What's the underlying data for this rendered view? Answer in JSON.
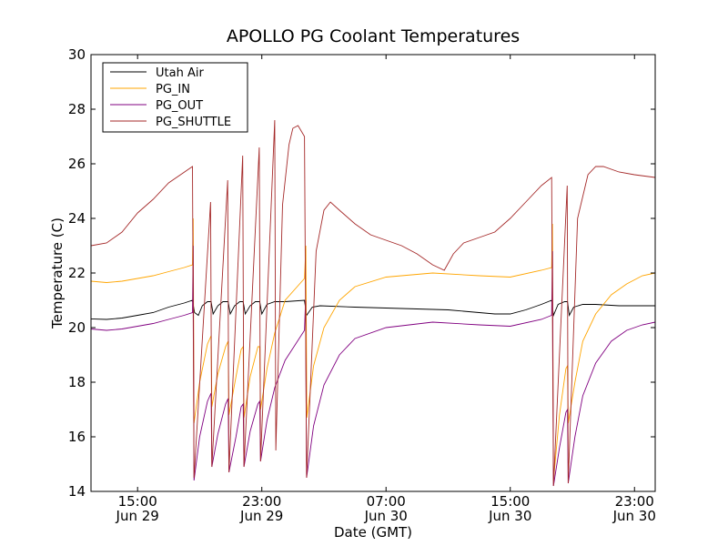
{
  "chart_data": {
    "type": "line",
    "title": "APOLLO PG Coolant Temperatures",
    "xlabel": "Date (GMT)",
    "ylabel": "Temperature (C)",
    "ylim": [
      14,
      30
    ],
    "xlim": [
      "2013-06-29 12:00",
      "2013-07-01 00:20"
    ],
    "yticks": [
      14,
      16,
      18,
      20,
      22,
      24,
      26,
      28,
      30
    ],
    "xticks": [
      {
        "t": "2013-06-29 15:00",
        "time": "15:00",
        "date": "Jun 29"
      },
      {
        "t": "2013-06-29 23:00",
        "time": "23:00",
        "date": "Jun 29"
      },
      {
        "t": "2013-06-30 07:00",
        "time": "07:00",
        "date": "Jun 30"
      },
      {
        "t": "2013-06-30 15:00",
        "time": "15:00",
        "date": "Jun 30"
      },
      {
        "t": "2013-06-30 23:00",
        "time": "23:00",
        "date": "Jun 30"
      }
    ],
    "grid": false,
    "legend_position": "top-left",
    "series": [
      {
        "name": "Utah Air",
        "color": "#000000",
        "points": [
          [
            "2013-06-29 12:00",
            20.32
          ],
          [
            "2013-06-29 13:00",
            20.3
          ],
          [
            "2013-06-29 14:00",
            20.35
          ],
          [
            "2013-06-29 15:00",
            20.45
          ],
          [
            "2013-06-29 16:00",
            20.55
          ],
          [
            "2013-06-29 17:00",
            20.75
          ],
          [
            "2013-06-29 18:00",
            20.9
          ],
          [
            "2013-06-29 18:32",
            21.0
          ],
          [
            "2013-06-29 18:40",
            20.55
          ],
          [
            "2013-06-29 18:55",
            20.45
          ],
          [
            "2013-06-29 19:10",
            20.8
          ],
          [
            "2013-06-29 19:30",
            20.95
          ],
          [
            "2013-06-29 19:44",
            20.95
          ],
          [
            "2013-06-29 19:52",
            20.5
          ],
          [
            "2013-06-29 20:10",
            20.8
          ],
          [
            "2013-06-29 20:30",
            20.95
          ],
          [
            "2013-06-29 20:50",
            20.95
          ],
          [
            "2013-06-29 20:58",
            20.5
          ],
          [
            "2013-06-29 21:15",
            20.8
          ],
          [
            "2013-06-29 21:35",
            20.95
          ],
          [
            "2013-06-29 21:48",
            20.95
          ],
          [
            "2013-06-29 21:56",
            20.5
          ],
          [
            "2013-06-29 22:15",
            20.8
          ],
          [
            "2013-06-29 22:35",
            20.95
          ],
          [
            "2013-06-29 22:52",
            20.95
          ],
          [
            "2013-06-29 23:00",
            20.5
          ],
          [
            "2013-06-29 23:20",
            20.85
          ],
          [
            "2013-06-29 23:50",
            20.95
          ],
          [
            "2013-06-30 00:30",
            20.95
          ],
          [
            "2013-06-30 01:45",
            21.0
          ],
          [
            "2013-06-30 01:53",
            20.45
          ],
          [
            "2013-06-30 02:15",
            20.75
          ],
          [
            "2013-06-30 02:45",
            20.8
          ],
          [
            "2013-06-30 05:00",
            20.75
          ],
          [
            "2013-06-30 08:00",
            20.7
          ],
          [
            "2013-06-30 11:00",
            20.65
          ],
          [
            "2013-06-30 14:00",
            20.5
          ],
          [
            "2013-06-30 15:00",
            20.5
          ],
          [
            "2013-06-30 16:00",
            20.65
          ],
          [
            "2013-06-30 17:00",
            20.85
          ],
          [
            "2013-06-30 17:40",
            21.0
          ],
          [
            "2013-06-30 17:47",
            20.45
          ],
          [
            "2013-06-30 18:05",
            20.85
          ],
          [
            "2013-06-30 18:30",
            20.95
          ],
          [
            "2013-06-30 18:41",
            20.95
          ],
          [
            "2013-06-30 18:48",
            20.45
          ],
          [
            "2013-06-30 19:05",
            20.75
          ],
          [
            "2013-06-30 19:40",
            20.85
          ],
          [
            "2013-06-30 20:30",
            20.85
          ],
          [
            "2013-06-30 22:00",
            20.8
          ],
          [
            "2013-06-30 23:00",
            20.8
          ],
          [
            "2013-07-01 00:20",
            20.8
          ]
        ]
      },
      {
        "name": "PG_IN",
        "color": "#ffa500",
        "points": [
          [
            "2013-06-29 12:00",
            21.7
          ],
          [
            "2013-06-29 13:00",
            21.65
          ],
          [
            "2013-06-29 14:00",
            21.7
          ],
          [
            "2013-06-29 15:00",
            21.8
          ],
          [
            "2013-06-29 16:00",
            21.9
          ],
          [
            "2013-06-29 17:00",
            22.05
          ],
          [
            "2013-06-29 18:00",
            22.2
          ],
          [
            "2013-06-29 18:32",
            22.3
          ],
          [
            "2013-06-29 18:35",
            24.0
          ],
          [
            "2013-06-29 18:38",
            16.5
          ],
          [
            "2013-06-29 19:00",
            18.0
          ],
          [
            "2013-06-29 19:30",
            19.4
          ],
          [
            "2013-06-29 19:44",
            19.7
          ],
          [
            "2013-06-29 19:47",
            17.1
          ],
          [
            "2013-06-29 20:10",
            18.3
          ],
          [
            "2013-06-29 20:40",
            19.3
          ],
          [
            "2013-06-29 20:50",
            19.5
          ],
          [
            "2013-06-29 20:53",
            16.8
          ],
          [
            "2013-06-29 21:20",
            18.2
          ],
          [
            "2013-06-29 21:40",
            19.2
          ],
          [
            "2013-06-29 21:48",
            19.3
          ],
          [
            "2013-06-29 21:51",
            16.7
          ],
          [
            "2013-06-29 22:15",
            18.2
          ],
          [
            "2013-06-29 22:45",
            19.3
          ],
          [
            "2013-06-29 22:52",
            19.3
          ],
          [
            "2013-06-29 22:55",
            17.0
          ],
          [
            "2013-06-29 23:20",
            18.5
          ],
          [
            "2013-06-29 23:50",
            19.8
          ],
          [
            "2013-06-30 00:30",
            21.0
          ],
          [
            "2013-06-30 01:45",
            21.8
          ],
          [
            "2013-06-30 01:50",
            23.0
          ],
          [
            "2013-06-30 01:54",
            16.7
          ],
          [
            "2013-06-30 02:20",
            18.6
          ],
          [
            "2013-06-30 03:00",
            20.0
          ],
          [
            "2013-06-30 04:00",
            21.0
          ],
          [
            "2013-06-30 05:00",
            21.5
          ],
          [
            "2013-06-30 07:00",
            21.85
          ],
          [
            "2013-06-30 10:00",
            22.0
          ],
          [
            "2013-06-30 13:00",
            21.9
          ],
          [
            "2013-06-30 15:00",
            21.85
          ],
          [
            "2013-06-30 17:00",
            22.1
          ],
          [
            "2013-06-30 17:40",
            22.2
          ],
          [
            "2013-06-30 17:43",
            23.8
          ],
          [
            "2013-06-30 17:47",
            14.4
          ],
          [
            "2013-06-30 18:10",
            16.8
          ],
          [
            "2013-06-30 18:35",
            18.5
          ],
          [
            "2013-06-30 18:41",
            18.6
          ],
          [
            "2013-06-30 18:44",
            16.5
          ],
          [
            "2013-06-30 19:10",
            18.0
          ],
          [
            "2013-06-30 19:40",
            19.5
          ],
          [
            "2013-06-30 20:30",
            20.5
          ],
          [
            "2013-06-30 21:30",
            21.2
          ],
          [
            "2013-06-30 22:30",
            21.6
          ],
          [
            "2013-06-30 23:30",
            21.9
          ],
          [
            "2013-07-01 00:20",
            22.0
          ]
        ]
      },
      {
        "name": "PG_OUT",
        "color": "#800080",
        "points": [
          [
            "2013-06-29 12:00",
            19.95
          ],
          [
            "2013-06-29 13:00",
            19.9
          ],
          [
            "2013-06-29 14:00",
            19.95
          ],
          [
            "2013-06-29 15:00",
            20.05
          ],
          [
            "2013-06-29 16:00",
            20.15
          ],
          [
            "2013-06-29 17:00",
            20.3
          ],
          [
            "2013-06-29 18:00",
            20.45
          ],
          [
            "2013-06-29 18:32",
            20.55
          ],
          [
            "2013-06-29 18:35",
            23.0
          ],
          [
            "2013-06-29 18:38",
            14.4
          ],
          [
            "2013-06-29 19:00",
            16.0
          ],
          [
            "2013-06-29 19:30",
            17.3
          ],
          [
            "2013-06-29 19:44",
            17.6
          ],
          [
            "2013-06-29 19:47",
            14.9
          ],
          [
            "2013-06-29 20:10",
            16.1
          ],
          [
            "2013-06-29 20:40",
            17.2
          ],
          [
            "2013-06-29 20:50",
            17.4
          ],
          [
            "2013-06-29 20:53",
            14.7
          ],
          [
            "2013-06-29 21:20",
            16.0
          ],
          [
            "2013-06-29 21:40",
            17.1
          ],
          [
            "2013-06-29 21:48",
            17.2
          ],
          [
            "2013-06-29 21:51",
            14.9
          ],
          [
            "2013-06-29 22:15",
            16.2
          ],
          [
            "2013-06-29 22:45",
            17.2
          ],
          [
            "2013-06-29 22:52",
            17.3
          ],
          [
            "2013-06-29 22:55",
            15.1
          ],
          [
            "2013-06-29 23:20",
            16.6
          ],
          [
            "2013-06-29 23:50",
            17.8
          ],
          [
            "2013-06-30 00:30",
            18.8
          ],
          [
            "2013-06-30 01:45",
            19.9
          ],
          [
            "2013-06-30 01:49",
            21.0
          ],
          [
            "2013-06-30 01:53",
            14.5
          ],
          [
            "2013-06-30 02:20",
            16.4
          ],
          [
            "2013-06-30 03:00",
            17.9
          ],
          [
            "2013-06-30 04:00",
            19.0
          ],
          [
            "2013-06-30 05:00",
            19.6
          ],
          [
            "2013-06-30 07:00",
            20.0
          ],
          [
            "2013-06-30 10:00",
            20.2
          ],
          [
            "2013-06-30 13:00",
            20.1
          ],
          [
            "2013-06-30 15:00",
            20.05
          ],
          [
            "2013-06-30 17:00",
            20.3
          ],
          [
            "2013-06-30 17:40",
            20.45
          ],
          [
            "2013-06-30 17:43",
            22.8
          ],
          [
            "2013-06-30 17:47",
            14.2
          ],
          [
            "2013-06-30 18:10",
            15.6
          ],
          [
            "2013-06-30 18:35",
            16.9
          ],
          [
            "2013-06-30 18:41",
            17.0
          ],
          [
            "2013-06-30 18:44",
            14.3
          ],
          [
            "2013-06-30 19:10",
            16.0
          ],
          [
            "2013-06-30 19:40",
            17.5
          ],
          [
            "2013-06-30 20:30",
            18.7
          ],
          [
            "2013-06-30 21:30",
            19.5
          ],
          [
            "2013-06-30 22:30",
            19.9
          ],
          [
            "2013-06-30 23:30",
            20.1
          ],
          [
            "2013-07-01 00:20",
            20.2
          ]
        ]
      },
      {
        "name": "PG_SHUTTLE",
        "color": "#a52a2a",
        "points": [
          [
            "2013-06-29 12:00",
            23.0
          ],
          [
            "2013-06-29 13:00",
            23.1
          ],
          [
            "2013-06-29 14:00",
            23.5
          ],
          [
            "2013-06-29 15:00",
            24.2
          ],
          [
            "2013-06-29 16:00",
            24.7
          ],
          [
            "2013-06-29 17:00",
            25.3
          ],
          [
            "2013-06-29 18:32",
            25.9
          ],
          [
            "2013-06-29 18:38",
            14.5
          ],
          [
            "2013-06-29 19:42",
            24.6
          ],
          [
            "2013-06-29 19:47",
            14.9
          ],
          [
            "2013-06-29 20:48",
            25.4
          ],
          [
            "2013-06-29 20:53",
            14.7
          ],
          [
            "2013-06-29 21:46",
            26.3
          ],
          [
            "2013-06-29 21:51",
            14.9
          ],
          [
            "2013-06-29 22:50",
            26.6
          ],
          [
            "2013-06-29 22:55",
            15.1
          ],
          [
            "2013-06-29 23:50",
            27.6
          ],
          [
            "2013-06-29 23:54",
            15.5
          ],
          [
            "2013-06-30 00:20",
            24.5
          ],
          [
            "2013-06-30 00:45",
            26.7
          ],
          [
            "2013-06-30 01:00",
            27.3
          ],
          [
            "2013-06-30 01:20",
            27.4
          ],
          [
            "2013-06-30 01:45",
            27.0
          ],
          [
            "2013-06-30 01:53",
            14.5
          ],
          [
            "2013-06-30 02:30",
            22.8
          ],
          [
            "2013-06-30 03:00",
            24.3
          ],
          [
            "2013-06-30 03:25",
            24.6
          ],
          [
            "2013-06-30 04:00",
            24.3
          ],
          [
            "2013-06-30 05:00",
            23.8
          ],
          [
            "2013-06-30 06:00",
            23.4
          ],
          [
            "2013-06-30 07:00",
            23.2
          ],
          [
            "2013-06-30 08:00",
            23.0
          ],
          [
            "2013-06-30 09:00",
            22.7
          ],
          [
            "2013-06-30 10:00",
            22.3
          ],
          [
            "2013-06-30 10:45",
            22.1
          ],
          [
            "2013-06-30 11:20",
            22.7
          ],
          [
            "2013-06-30 12:00",
            23.1
          ],
          [
            "2013-06-30 13:00",
            23.3
          ],
          [
            "2013-06-30 14:00",
            23.5
          ],
          [
            "2013-06-30 15:00",
            24.0
          ],
          [
            "2013-06-30 16:00",
            24.6
          ],
          [
            "2013-06-30 17:00",
            25.2
          ],
          [
            "2013-06-30 17:40",
            25.5
          ],
          [
            "2013-06-30 17:47",
            14.2
          ],
          [
            "2013-06-30 18:40",
            25.2
          ],
          [
            "2013-06-30 18:44",
            14.3
          ],
          [
            "2013-06-30 19:20",
            24.0
          ],
          [
            "2013-06-30 20:00",
            25.6
          ],
          [
            "2013-06-30 20:30",
            25.9
          ],
          [
            "2013-06-30 21:00",
            25.9
          ],
          [
            "2013-06-30 22:00",
            25.7
          ],
          [
            "2013-06-30 23:00",
            25.6
          ],
          [
            "2013-07-01 00:20",
            25.5
          ]
        ]
      }
    ]
  }
}
